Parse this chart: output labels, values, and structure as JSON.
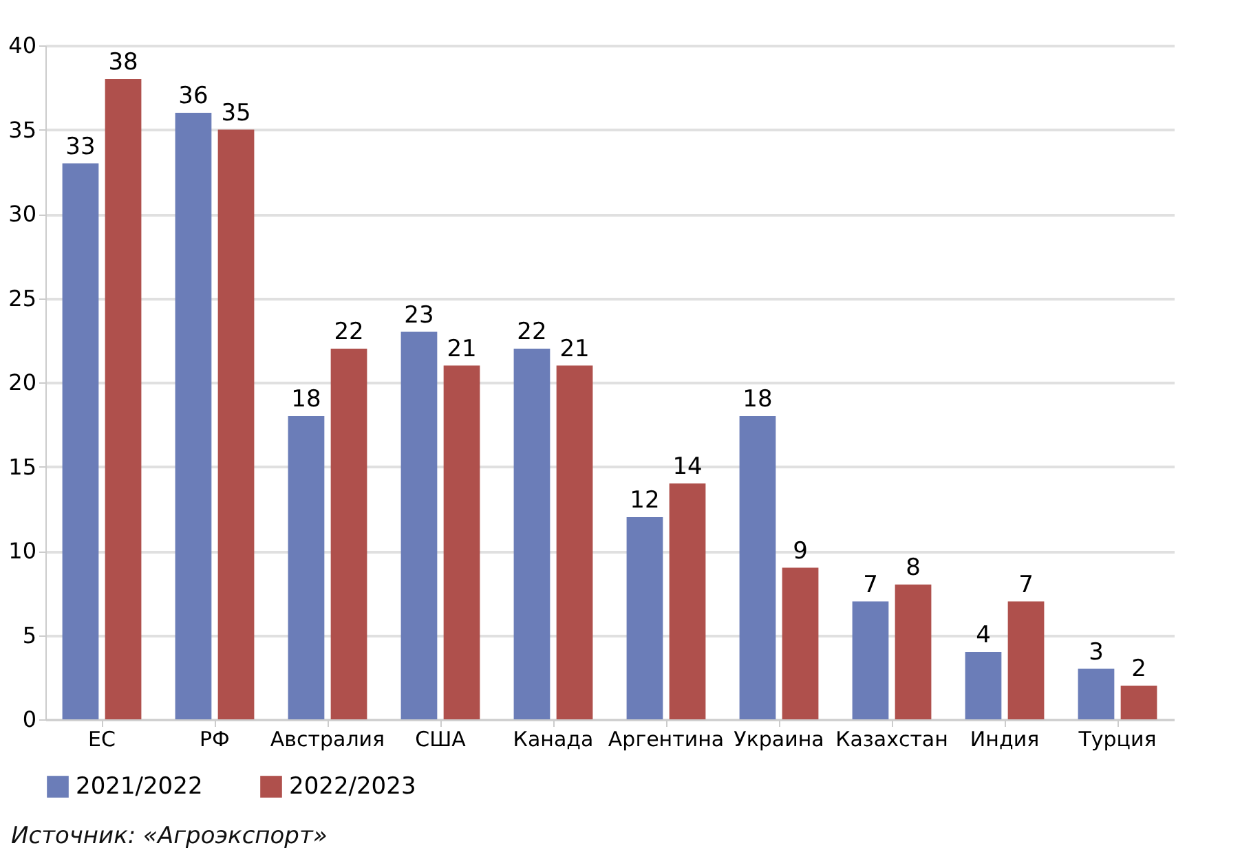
{
  "chart_data": {
    "type": "bar",
    "categories": [
      "ЕС",
      "РФ",
      "Австралия",
      "США",
      "Канада",
      "Аргентина",
      "Украина",
      "Казахстан",
      "Индия",
      "Турция"
    ],
    "series": [
      {
        "name": "2021/2022",
        "color": "#6b7db8",
        "values": [
          33,
          36,
          18,
          23,
          22,
          12,
          18,
          7,
          4,
          3
        ]
      },
      {
        "name": "2022/2023",
        "color": "#af504c",
        "values": [
          38,
          35,
          22,
          21,
          21,
          14,
          9,
          8,
          7,
          2
        ]
      }
    ],
    "ylim": [
      0,
      40
    ],
    "yticks": [
      0,
      5,
      10,
      15,
      20,
      25,
      30,
      35,
      40
    ],
    "grid": "y",
    "legend": "bottom",
    "data_labels": true,
    "annotations": [
      "Источник: «Агроэкспорт»"
    ]
  }
}
